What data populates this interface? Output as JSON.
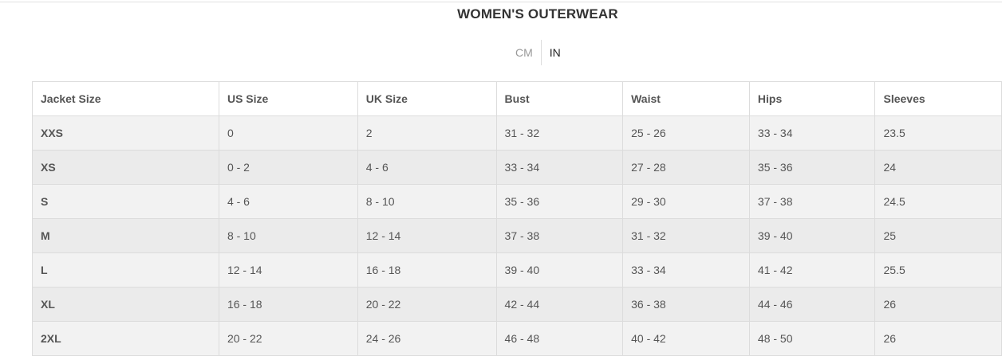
{
  "title": "WOMEN'S OUTERWEAR",
  "units": {
    "cm": "CM",
    "in": "IN",
    "selected": "IN"
  },
  "table": {
    "headers": [
      "Jacket Size",
      "US Size",
      "UK Size",
      "Bust",
      "Waist",
      "Hips",
      "Sleeves"
    ],
    "rows": [
      [
        "XXS",
        "0",
        "2",
        "31 - 32",
        "25 - 26",
        "33 - 34",
        "23.5"
      ],
      [
        "XS",
        "0 - 2",
        "4 - 6",
        "33 - 34",
        "27 - 28",
        "35 - 36",
        "24"
      ],
      [
        "S",
        "4 - 6",
        "8 - 10",
        "35 - 36",
        "29 - 30",
        "37 - 38",
        "24.5"
      ],
      [
        "M",
        "8 - 10",
        "12 - 14",
        "37 - 38",
        "31 - 32",
        "39 - 40",
        "25"
      ],
      [
        "L",
        "12 - 14",
        "16 - 18",
        "39 - 40",
        "33 - 34",
        "41 - 42",
        "25.5"
      ],
      [
        "XL",
        "16 - 18",
        "20 - 22",
        "42 - 44",
        "36 - 38",
        "44 - 46",
        "26"
      ],
      [
        "2XL",
        "20 - 22",
        "24 - 26",
        "46 - 48",
        "40 - 42",
        "48 - 50",
        "26"
      ]
    ]
  }
}
